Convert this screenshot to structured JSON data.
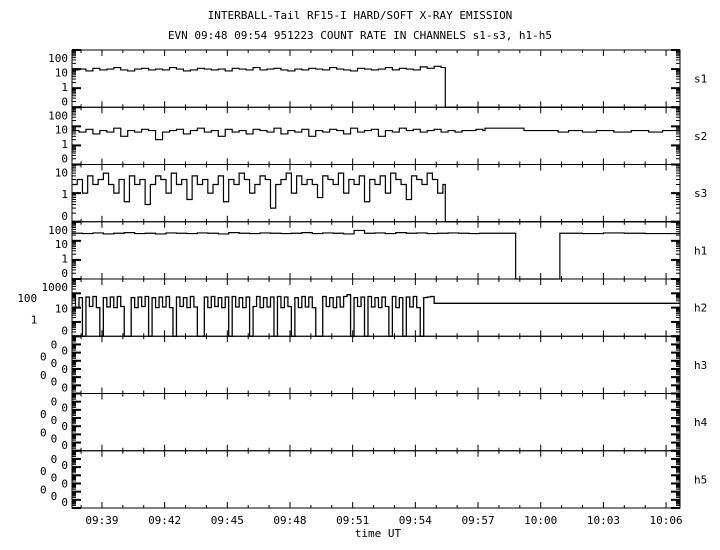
{
  "chart_data": {
    "type": "line",
    "title": "INTERBALL-Tail RF15-I HARD/SOFT X-RAY EMISSION",
    "subtitle": "EVN 09:48 09:54 951223  COUNT RATE IN CHANNELS s1-s3, h1-h5",
    "xlabel": "time UT",
    "x_ticks": [
      "09:39",
      "09:42",
      "09:45",
      "09:48",
      "09:51",
      "09:54",
      "09:57",
      "10:00",
      "10:03",
      "10:06"
    ],
    "xlim": [
      "09:37:34",
      "10:06:40"
    ],
    "y_scale": "log",
    "line_color": "#000000",
    "panels": [
      {
        "name": "s1",
        "y_ticks": [
          "0",
          "1",
          "10",
          "100"
        ],
        "noisy": {
          "start": "09:37:34",
          "step_s": 20,
          "values": [
            9,
            10,
            8,
            11,
            9,
            10,
            12,
            9,
            8,
            10,
            11,
            9,
            10,
            9,
            12,
            10,
            8,
            9,
            11,
            10,
            9,
            10,
            8,
            11,
            10,
            9,
            12,
            9,
            10,
            11,
            9,
            8,
            10,
            9,
            11,
            10,
            9,
            12,
            10,
            9,
            8,
            11,
            10,
            9,
            10,
            12,
            9,
            11,
            10,
            9,
            13,
            11,
            14,
            12
          ]
        },
        "steps": [
          [
            "09:55:26",
            0
          ],
          [
            "10:06:40",
            0
          ]
        ]
      },
      {
        "name": "s2",
        "y_ticks": [
          "0",
          "1",
          "10",
          "100"
        ],
        "noisy": {
          "start": "09:37:34",
          "step_s": 20,
          "values": [
            6,
            5,
            7,
            4,
            6,
            5,
            8,
            3,
            6,
            5,
            7,
            6,
            2,
            5,
            6,
            7,
            4,
            6,
            8,
            5,
            6,
            3,
            7,
            5,
            6,
            4,
            7,
            6,
            5,
            8,
            4,
            6,
            5,
            7,
            3,
            6,
            5,
            7,
            6,
            4,
            8,
            5,
            6,
            7,
            3,
            6,
            5,
            8,
            6,
            7,
            5,
            6,
            7,
            5,
            6,
            5,
            6,
            6,
            7,
            6
          ]
        },
        "steps": [
          [
            "09:57:20",
            8
          ],
          [
            "09:59:12",
            6
          ],
          [
            "10:00:50",
            5
          ],
          [
            "10:01:20",
            6
          ],
          [
            "10:02:00",
            5
          ],
          [
            "10:02:40",
            6
          ],
          [
            "10:03:30",
            5
          ],
          [
            "10:04:20",
            6
          ],
          [
            "10:05:10",
            5
          ],
          [
            "10:05:50",
            6
          ],
          [
            "10:06:40",
            6
          ]
        ]
      },
      {
        "name": "s3",
        "y_ticks": [
          "0",
          "1",
          "10"
        ],
        "noisy": {
          "start": "09:37:34",
          "step_s": 15,
          "values": [
            2,
            3,
            1,
            4,
            2,
            3,
            5,
            2,
            1,
            3,
            0.5,
            4,
            2,
            3,
            0.4,
            2,
            4,
            3,
            1,
            5,
            2,
            3,
            0.6,
            4,
            2,
            3,
            1,
            2,
            4,
            0.5,
            3,
            2,
            5,
            3,
            1,
            2,
            4,
            3,
            0.3,
            2,
            3,
            5,
            1,
            4,
            2,
            3,
            2,
            0.7,
            4,
            3,
            2,
            5,
            1,
            3,
            2,
            4,
            0.5,
            3,
            2,
            4,
            1,
            5,
            3,
            2,
            0.6,
            4,
            3,
            2,
            5,
            3,
            1,
            2
          ]
        },
        "steps": [
          [
            "09:55:26",
            0
          ],
          [
            "10:06:40",
            0
          ]
        ]
      },
      {
        "name": "h1",
        "y_ticks": [
          "0",
          "1",
          "10",
          "100"
        ],
        "noisy": {
          "start": "09:37:34",
          "step_s": 30,
          "values": [
            25,
            24,
            26,
            23,
            25,
            27,
            24,
            25,
            23,
            26,
            25,
            24,
            26,
            25,
            23,
            27,
            25,
            24,
            26,
            25,
            24,
            25,
            27,
            24,
            26,
            25,
            23,
            35,
            25,
            26,
            24,
            27,
            25,
            26,
            24,
            25,
            26,
            25,
            24,
            25,
            25,
            25
          ]
        },
        "steps": [
          [
            "09:58:48",
            0
          ],
          [
            "10:00:55",
            25
          ],
          [
            "10:02:00",
            24
          ],
          [
            "10:03:00",
            26
          ],
          [
            "10:04:00",
            25
          ],
          [
            "10:05:00",
            24
          ],
          [
            "10:06:40",
            25
          ]
        ]
      },
      {
        "name": "h2",
        "y_ticks": [
          "0",
          "1",
          "10",
          "100",
          "1000"
        ],
        "noisy": {
          "start": "09:37:34",
          "step_s": 10,
          "values": [
            60,
            10,
            50,
            0,
            55,
            12,
            60,
            10,
            0,
            50,
            11,
            55,
            10,
            60,
            12,
            0,
            0,
            50,
            10,
            55,
            12,
            60,
            0,
            50,
            10,
            55,
            11,
            60,
            10,
            0,
            55,
            12,
            50,
            10,
            60,
            11,
            0,
            0,
            55,
            10,
            60,
            12,
            50,
            10,
            55,
            0,
            60,
            11,
            50,
            10,
            55,
            0,
            12,
            60,
            10,
            50,
            11,
            55,
            0,
            60,
            10,
            55,
            12,
            0,
            50,
            10,
            60,
            11,
            55,
            10,
            0,
            0,
            60,
            12,
            50,
            10,
            55,
            11,
            60,
            80,
            0,
            50,
            12,
            55,
            0,
            60,
            11,
            50,
            10,
            55,
            12,
            0,
            60,
            10,
            50,
            0,
            55,
            11,
            60,
            10,
            0,
            50,
            55,
            60
          ]
        },
        "steps": [
          [
            "09:54:54",
            20
          ],
          [
            "10:06:40",
            20
          ]
        ]
      },
      {
        "name": "h3",
        "y_ticks": [
          "0",
          "0",
          "0",
          "0",
          "0",
          "0",
          "0",
          "0"
        ]
      },
      {
        "name": "h4",
        "y_ticks": [
          "0",
          "0",
          "0",
          "0",
          "0",
          "0",
          "0",
          "0"
        ]
      },
      {
        "name": "h5",
        "y_ticks": [
          "0",
          "0",
          "0",
          "0",
          "0",
          "0",
          "0",
          "0"
        ]
      }
    ]
  }
}
